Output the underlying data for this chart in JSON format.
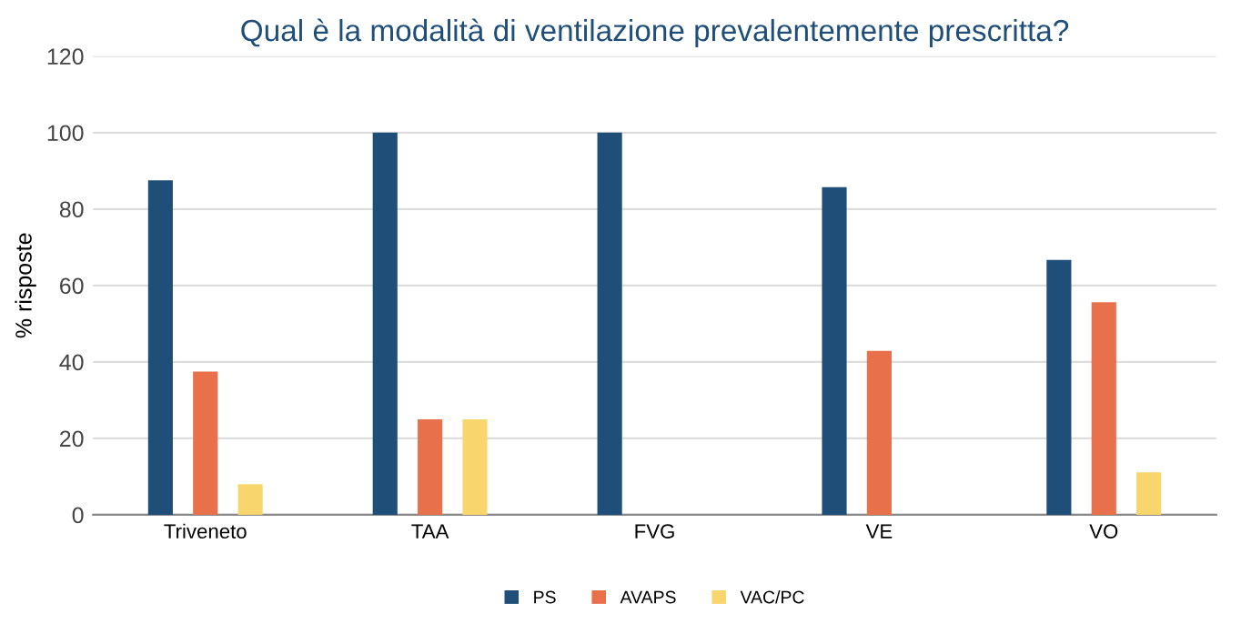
{
  "chart_data": {
    "type": "bar",
    "title": "Qual è la modalità di ventilazione prevalentemente prescritta?",
    "ylabel": "% risposte",
    "categories": [
      "Triveneto",
      "TAA",
      "FVG",
      "VE",
      "VO"
    ],
    "series": [
      {
        "name": "PS",
        "color": "#1f4e79",
        "values": [
          87.5,
          100,
          100,
          85.7,
          66.7
        ]
      },
      {
        "name": "AVAPS",
        "color": "#e8704a",
        "values": [
          37.5,
          25,
          0,
          42.9,
          55.6
        ]
      },
      {
        "name": "VAC/PC",
        "color": "#f9d56e",
        "values": [
          8,
          25,
          0,
          null,
          11.1
        ]
      }
    ],
    "ylim": [
      0,
      120
    ],
    "yticks": [
      0,
      20,
      40,
      60,
      80,
      100,
      120
    ],
    "grid": "y",
    "legend": "bottom"
  }
}
